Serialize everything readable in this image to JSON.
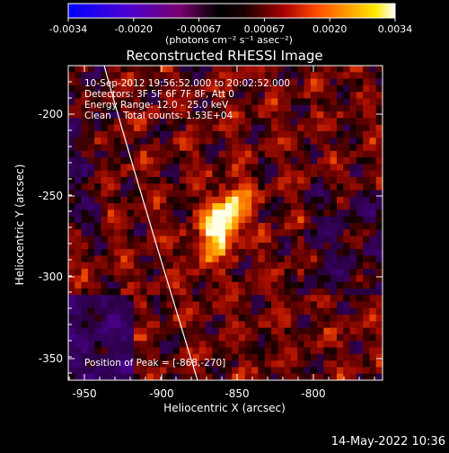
{
  "colorbar": {
    "tick_labels": [
      "-0.0034",
      "-0.0020",
      "-0.00067",
      "0.00067",
      "0.0020",
      "0.0034"
    ],
    "units_label": "(photons cm⁻² s⁻¹ asec⁻²)",
    "palette": [
      "#0000ff",
      "#5a00c8",
      "#7a006f",
      "#000000",
      "#7a0000",
      "#c60000",
      "#ff4b00",
      "#ffa100",
      "#ffea00",
      "#ffffff"
    ]
  },
  "title": "Reconstructed RHESSI Image",
  "info": {
    "time_range": "10-Sep-2012 19:56:52.000 to 20:02:52.000",
    "detectors": "Detectors: 3F 5F 6F 7F 8F, Att 0",
    "energy_range": "Energy Range: 12.0 - 25.0 keV",
    "clean_counts": "Clean    Total counts: 1.53E+04"
  },
  "peak_label": "Position of Peak = [-868,-270]",
  "x_axis": {
    "label": "Heliocentric X (arcsec)",
    "ticks": [
      "-950",
      "-900",
      "-850",
      "-800"
    ]
  },
  "y_axis": {
    "label": "Heliocentric Y (arcsec)",
    "ticks": [
      "-200",
      "-250",
      "-300",
      "-350"
    ]
  },
  "timestamp": "14-May-2022 10:36"
}
